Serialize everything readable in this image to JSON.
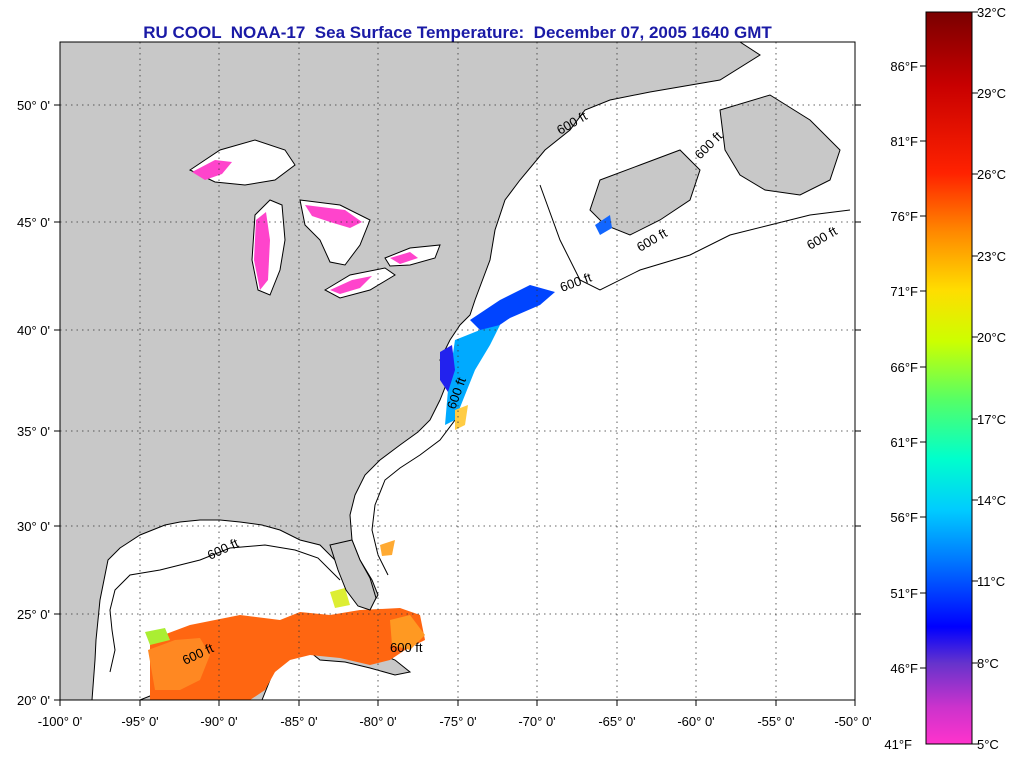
{
  "title": "RU COOL  NOAA-17  Sea Surface Temperature:  December 07, 2005 1640 GMT",
  "axes": {
    "lon_labels": [
      "-100° 0'",
      "-95° 0'",
      "-90° 0'",
      "-85° 0'",
      "-80° 0'",
      "-75° 0'",
      "-70° 0'",
      "-65° 0'",
      "-60° 0'",
      "-55° 0'",
      "-50° 0'"
    ],
    "lat_labels": [
      "20° 0'",
      "25° 0'",
      "30° 0'",
      "35° 0'",
      "40° 0'",
      "45° 0'",
      "50° 0'"
    ],
    "lon_range": [
      -100,
      -50
    ],
    "lat_range": [
      20,
      52.5
    ]
  },
  "contour_label": "600 ft",
  "colorbar": {
    "celsius_labels": [
      "32°C",
      "29°C",
      "26°C",
      "23°C",
      "20°C",
      "17°C",
      "14°C",
      "11°C",
      "8°C",
      "5°C"
    ],
    "fahrenheit_labels": [
      "86°F",
      "81°F",
      "76°F",
      "71°F",
      "66°F",
      "61°F",
      "56°F",
      "51°F",
      "46°F",
      "41°F"
    ],
    "colors": [
      "#7a0000",
      "#c80000",
      "#ff2200",
      "#ff7a00",
      "#ffcc00",
      "#ccff00",
      "#55ff55",
      "#00ffcc",
      "#00ccff",
      "#0077ff",
      "#0000ff",
      "#6633cc",
      "#cc33cc",
      "#ff33cc"
    ]
  },
  "colors": {
    "land": "#c8c8c8",
    "ocean": "#ffffff",
    "title": "#1a1aa6",
    "lake_cold": "#ff44cc"
  }
}
